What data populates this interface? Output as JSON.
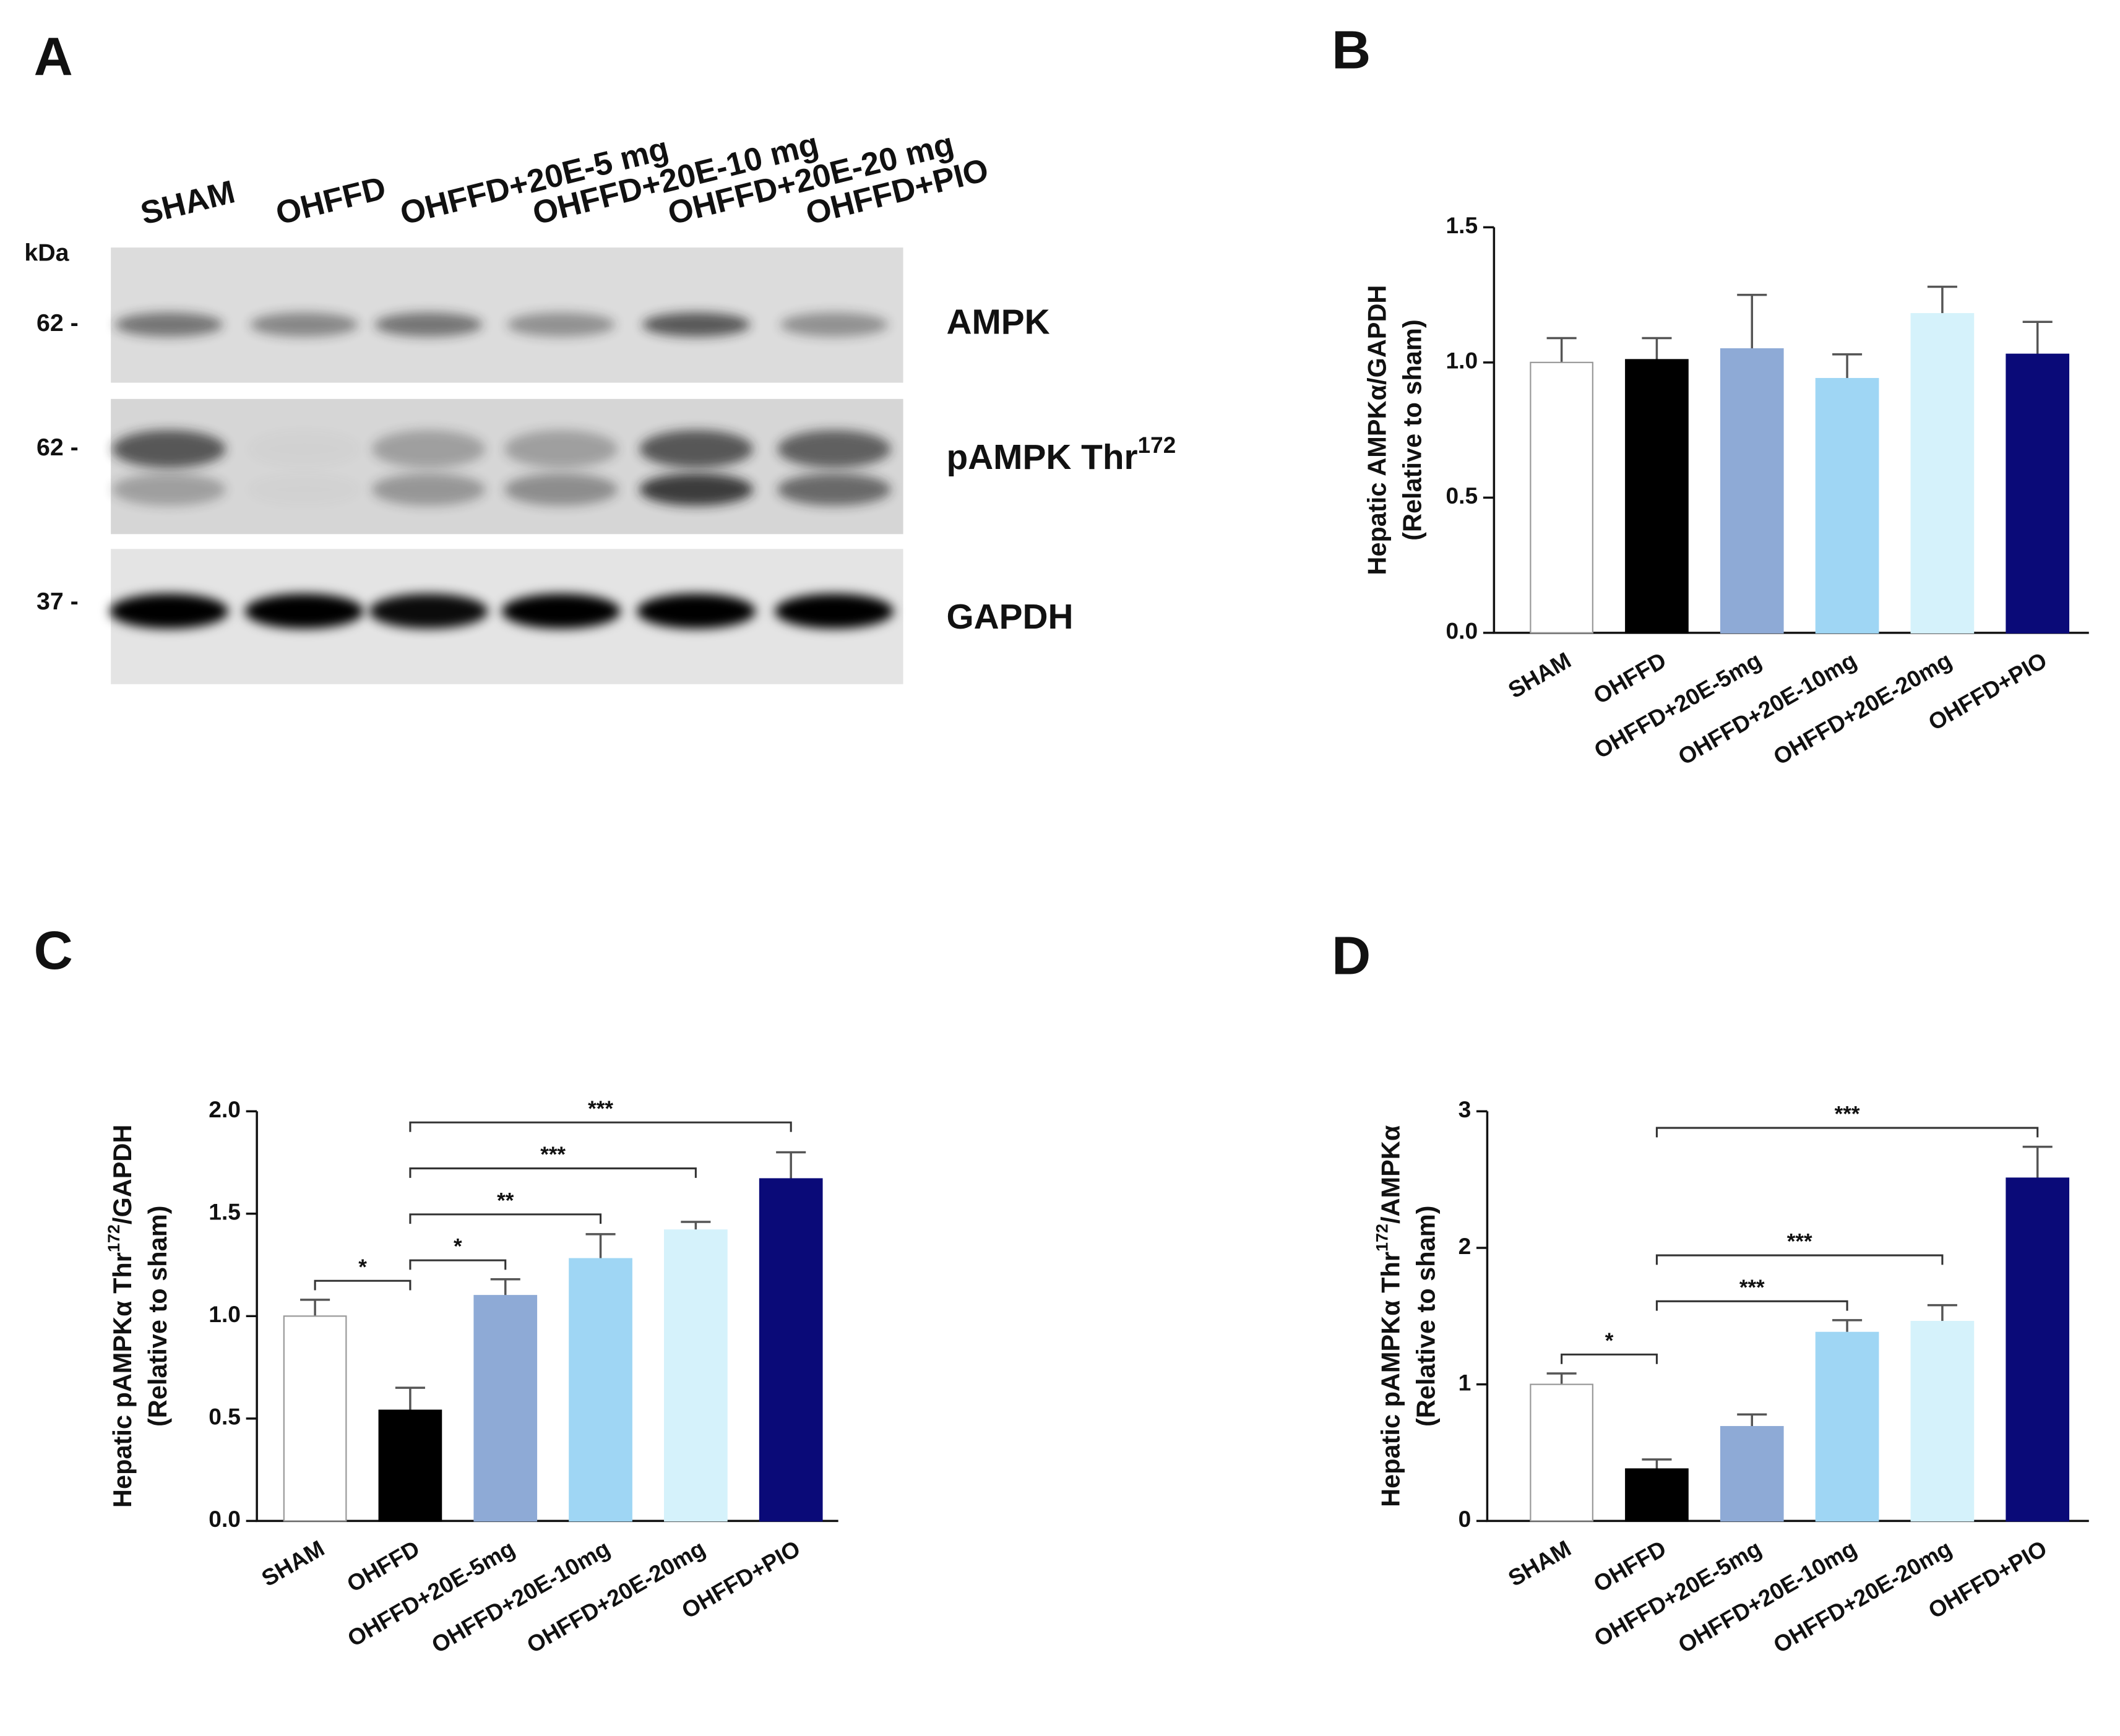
{
  "panel_labels": [
    "A",
    "B",
    "C",
    "D"
  ],
  "blot": {
    "lanes": [
      "SHAM",
      "OHFFD",
      "OHFFD+20E-5 mg",
      "OHFFD+20E-10 mg",
      "OHFFD+20E-20 mg",
      "OHFFD+PIO"
    ],
    "kda_label": "kDa",
    "rows": [
      {
        "marker": "62 -",
        "label": [
          "AMPK"
        ]
      },
      {
        "marker": "62 -",
        "label": [
          "pAMPK Thr",
          "172"
        ]
      },
      {
        "marker": "37 -",
        "label": [
          "GAPDH"
        ]
      }
    ]
  },
  "chart_data": [
    {
      "type": "bar",
      "ylabel": [
        "Hepatic AMPKα/GAPDH"
      ],
      "ylabel2": "(Relative to sham)",
      "categories": [
        "SHAM",
        "OHFFD",
        "OHFFD+20E-5mg",
        "OHFFD+20E-10mg",
        "OHFFD+20E-20mg",
        "OHFFD+PIO"
      ],
      "values": [
        1.0,
        1.01,
        1.05,
        0.94,
        1.18,
        1.03
      ],
      "errors": [
        0.09,
        0.08,
        0.2,
        0.09,
        0.1,
        0.12
      ],
      "colors": [
        "#ffffff",
        "#000000",
        "#8eaad6",
        "#9fd6f4",
        "#d5f2fb",
        "#0a0a78"
      ],
      "ylim": [
        0,
        1.5
      ],
      "yticks": [
        {
          "value": 0,
          "label": "0.0"
        },
        {
          "value": 0.5,
          "label": "0.5"
        },
        {
          "value": 1,
          "label": "1.0"
        },
        {
          "value": 1.5,
          "label": "1.5"
        }
      ],
      "annotations": []
    },
    {
      "type": "bar",
      "ylabel": [
        "Hepatic pAMPKα Thr",
        "172",
        "/GAPDH"
      ],
      "ylabel2": "(Relative to sham)",
      "categories": [
        "SHAM",
        "OHFFD",
        "OHFFD+20E-5mg",
        "OHFFD+20E-10mg",
        "OHFFD+20E-20mg",
        "OHFFD+PIO"
      ],
      "values": [
        1.0,
        0.54,
        1.1,
        1.28,
        1.42,
        1.67
      ],
      "errors": [
        0.08,
        0.11,
        0.08,
        0.12,
        0.04,
        0.13
      ],
      "colors": [
        "#ffffff",
        "#000000",
        "#8eaad6",
        "#9fd6f4",
        "#d5f2fb",
        "#0a0a78"
      ],
      "ylim": [
        0,
        2
      ],
      "yticks": [
        {
          "value": 0,
          "label": "0.0"
        },
        {
          "value": 0.5,
          "label": "0.5"
        },
        {
          "value": 1,
          "label": "1.0"
        },
        {
          "value": 1.5,
          "label": "1.5"
        },
        {
          "value": 2,
          "label": "2.0"
        }
      ],
      "annotations": [
        {
          "from": "SHAM",
          "to": "OHFFD",
          "label": "*"
        },
        {
          "from": "OHFFD",
          "to": "OHFFD+20E-5mg",
          "label": "*"
        },
        {
          "from": "OHFFD",
          "to": "OHFFD+20E-10mg",
          "label": "**"
        },
        {
          "from": "OHFFD",
          "to": "OHFFD+20E-20mg",
          "label": "***"
        },
        {
          "from": "OHFFD",
          "to": "OHFFD+PIO",
          "label": "***"
        }
      ]
    },
    {
      "type": "bar",
      "ylabel": [
        "Hepatic pAMPKα Thr",
        "172",
        "/AMPKα"
      ],
      "ylabel2": "(Relative to sham)",
      "categories": [
        "SHAM",
        "OHFFD",
        "OHFFD+20E-5mg",
        "OHFFD+20E-10mg",
        "OHFFD+20E-20mg",
        "OHFFD+PIO"
      ],
      "values": [
        1.0,
        0.38,
        0.69,
        1.38,
        1.46,
        2.51
      ],
      "errors": [
        0.08,
        0.07,
        0.09,
        0.09,
        0.12,
        0.23
      ],
      "colors": [
        "#ffffff",
        "#000000",
        "#8eaad6",
        "#9fd6f4",
        "#d5f2fb",
        "#0a0a78"
      ],
      "ylim": [
        0,
        3
      ],
      "yticks": [
        0,
        1,
        2,
        3
      ],
      "annotations": [
        {
          "from": "SHAM",
          "to": "OHFFD",
          "label": "*"
        },
        {
          "from": "OHFFD",
          "to": "OHFFD+20E-10mg",
          "label": "***"
        },
        {
          "from": "OHFFD",
          "to": "OHFFD+20E-20mg",
          "label": "***"
        },
        {
          "from": "OHFFD",
          "to": "OHFFD+PIO",
          "label": "***"
        }
      ]
    }
  ]
}
